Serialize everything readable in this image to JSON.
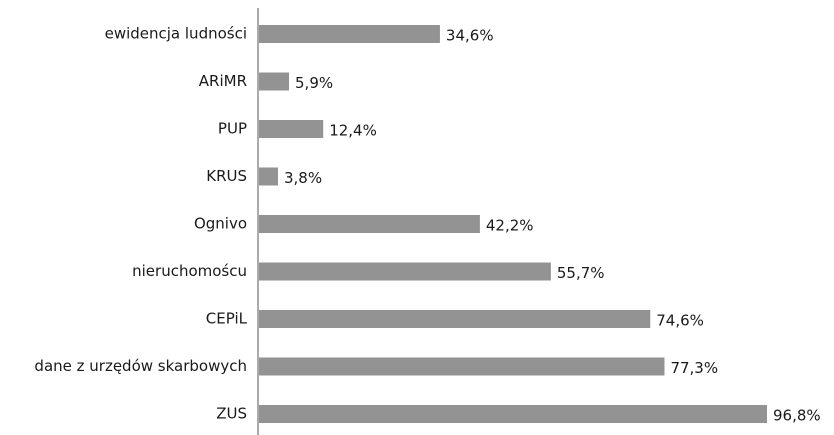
{
  "chart_data": {
    "type": "barh",
    "color": "#939393",
    "categories": [
      "ewidencja ludności",
      "ARiMR",
      "PUP",
      "KRUS",
      "Ognivo",
      "nieruchomoścu",
      "CEPiL",
      "dane z urzędów skarbowych",
      "ZUS"
    ],
    "values": [
      34.6,
      5.9,
      12.4,
      3.8,
      42.2,
      55.7,
      74.6,
      77.3,
      96.8
    ],
    "value_labels": [
      "34,6%",
      "5,9%",
      "12,4%",
      "3,8%",
      "42,2%",
      "55,7%",
      "74,6%",
      "77,3%",
      "96,8%"
    ]
  }
}
